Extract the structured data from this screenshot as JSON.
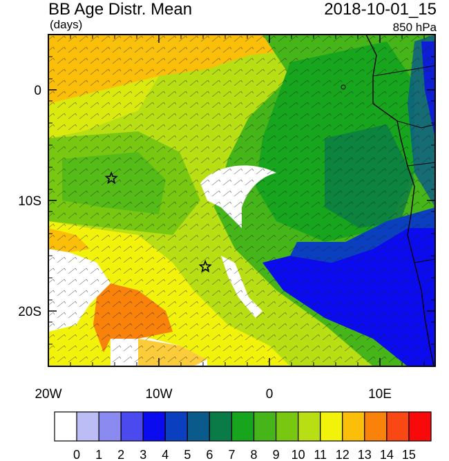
{
  "header": {
    "title": "BB Age Distr. Mean",
    "units": "(days)",
    "timestamp": "2018-10-01_15",
    "level": "850 hPa"
  },
  "axes": {
    "x_ticks": [
      {
        "value": -20,
        "label": "20W"
      },
      {
        "value": -10,
        "label": "10W"
      },
      {
        "value": 0,
        "label": "0"
      },
      {
        "value": 10,
        "label": "10E"
      }
    ],
    "y_ticks": [
      {
        "value": 0,
        "label": "0"
      },
      {
        "value": -10,
        "label": "10S"
      },
      {
        "value": -20,
        "label": "20S"
      }
    ],
    "lon_range": [
      -20,
      15
    ],
    "lat_range": [
      -25,
      5
    ]
  },
  "colorbar": {
    "labels": [
      "0",
      "1",
      "2",
      "3",
      "4",
      "5",
      "6",
      "7",
      "8",
      "9",
      "10",
      "11",
      "12",
      "13",
      "14",
      "15"
    ],
    "colors": [
      "#ffffff",
      "#bdbdf5",
      "#8a8af0",
      "#4a4aef",
      "#0b0bef",
      "#0a3fc0",
      "#0a5a8c",
      "#0a7a46",
      "#18a51e",
      "#45b51a",
      "#78c812",
      "#b8de14",
      "#f2f20a",
      "#fbbf0a",
      "#f9820a",
      "#f94814",
      "#f90a0a"
    ]
  },
  "markers": [
    {
      "name": "star-marker-1",
      "lon": -14.3,
      "lat": -8.0
    },
    {
      "name": "star-marker-2",
      "lon": -5.8,
      "lat": -16.0
    }
  ]
}
